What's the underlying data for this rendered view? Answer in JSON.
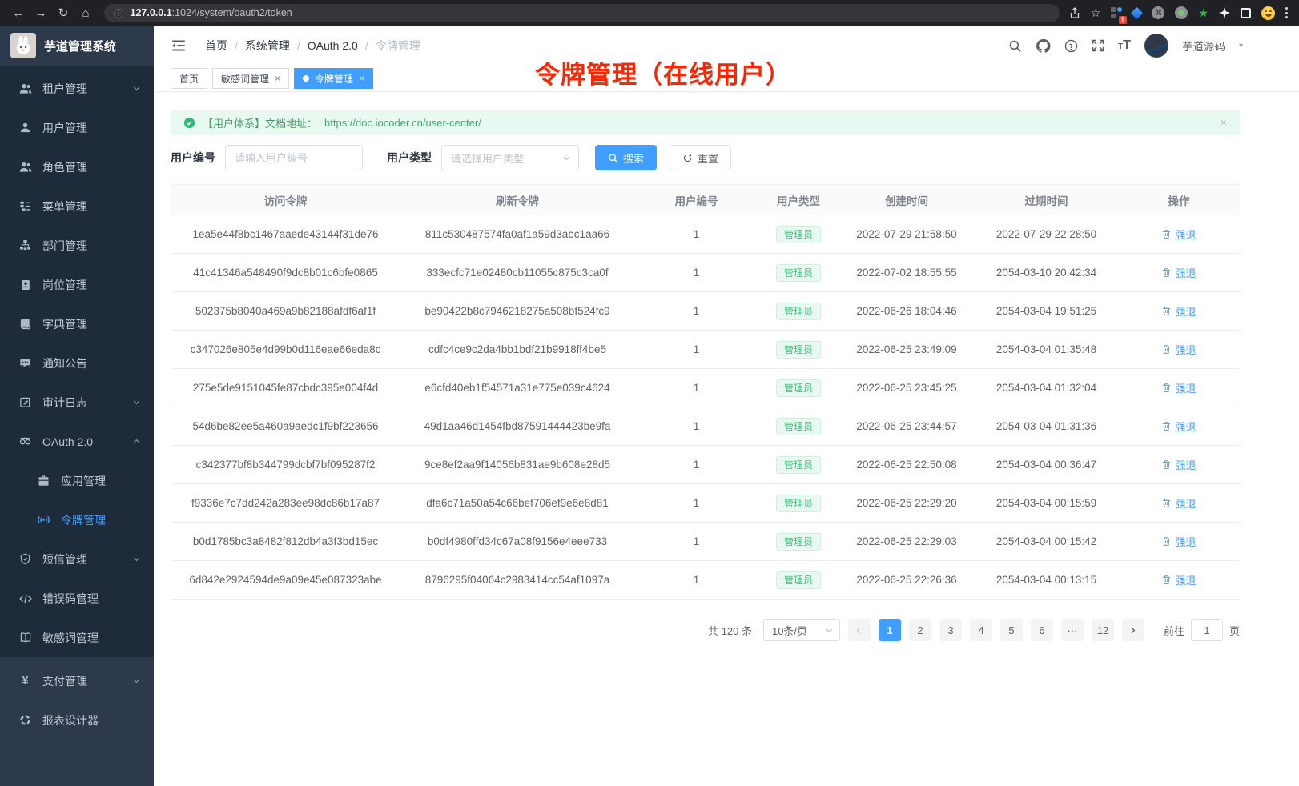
{
  "browser": {
    "url_host": "127.0.0.1",
    "url_path": ":1024/system/oauth2/token",
    "extension_badge": "9"
  },
  "header": {
    "logo_title": "芋道管理系统",
    "breadcrumb": [
      "首页",
      "系统管理",
      "OAuth 2.0",
      "令牌管理"
    ],
    "username": "芋道源码"
  },
  "annotation": "令牌管理（在线用户）",
  "sidebar": {
    "items": [
      {
        "name": "tenant",
        "label": "租户管理",
        "icon": "users-icon",
        "chevron": "down"
      },
      {
        "name": "user",
        "label": "用户管理",
        "icon": "user-icon"
      },
      {
        "name": "role",
        "label": "角色管理",
        "icon": "users-icon"
      },
      {
        "name": "menu",
        "label": "菜单管理",
        "icon": "tree-icon"
      },
      {
        "name": "dept",
        "label": "部门管理",
        "icon": "org-icon"
      },
      {
        "name": "post",
        "label": "岗位管理",
        "icon": "post-icon"
      },
      {
        "name": "dict",
        "label": "字典管理",
        "icon": "dict-icon"
      },
      {
        "name": "notice",
        "label": "通知公告",
        "icon": "notice-icon"
      },
      {
        "name": "audit-log",
        "label": "审计日志",
        "icon": "log-icon",
        "chevron": "down"
      },
      {
        "name": "oauth2",
        "label": "OAuth 2.0",
        "icon": "oauth-icon",
        "chevron": "up"
      },
      {
        "name": "oauth2-app",
        "label": "应用管理",
        "icon": "app-icon",
        "sub": true
      },
      {
        "name": "oauth2-token",
        "label": "令牌管理",
        "icon": "token-icon",
        "sub": true,
        "active": true
      },
      {
        "name": "sms",
        "label": "短信管理",
        "icon": "shield-icon",
        "chevron": "down"
      },
      {
        "name": "error-code",
        "label": "错误码管理",
        "icon": "code-icon"
      },
      {
        "name": "sensitive-word",
        "label": "敏感词管理",
        "icon": "book-icon"
      },
      {
        "name": "pay",
        "label": "支付管理",
        "icon": "yen-icon",
        "chevron": "down",
        "section": "bottom"
      },
      {
        "name": "report-designer",
        "label": "报表设计器",
        "icon": "report-icon",
        "section": "bottom"
      }
    ]
  },
  "tabs": [
    {
      "label": "首页",
      "closable": false,
      "active": false
    },
    {
      "label": "敏感词管理",
      "closable": true,
      "active": false
    },
    {
      "label": "令牌管理",
      "closable": true,
      "active": true
    }
  ],
  "alert": {
    "text": "【用户体系】文档地址：",
    "link": "https://doc.iocoder.cn/user-center/"
  },
  "filters": {
    "user_id_label": "用户编号",
    "user_id_placeholder": "请输入用户编号",
    "user_type_label": "用户类型",
    "user_type_placeholder": "请选择用户类型",
    "search_label": "搜索",
    "reset_label": "重置"
  },
  "table": {
    "columns": [
      "访问令牌",
      "刷新令牌",
      "用户编号",
      "用户类型",
      "创建时间",
      "过期时间",
      "操作"
    ],
    "badge_label": "管理员",
    "action_label": "强退",
    "rows": [
      {
        "access": "1ea5e44f8bc1467aaede43144f31de76",
        "refresh": "811c530487574fa0af1a59d3abc1aa66",
        "user_id": "1",
        "created": "2022-07-29 21:58:50",
        "expires": "2022-07-29 22:28:50"
      },
      {
        "access": "41c41346a548490f9dc8b01c6bfe0865",
        "refresh": "333ecfc71e02480cb11055c875c3ca0f",
        "user_id": "1",
        "created": "2022-07-02 18:55:55",
        "expires": "2054-03-10 20:42:34"
      },
      {
        "access": "502375b8040a469a9b82188afdf6af1f",
        "refresh": "be90422b8c7946218275a508bf524fc9",
        "user_id": "1",
        "created": "2022-06-26 18:04:46",
        "expires": "2054-03-04 19:51:25"
      },
      {
        "access": "c347026e805e4d99b0d116eae66eda8c",
        "refresh": "cdfc4ce9c2da4bb1bdf21b9918ff4be5",
        "user_id": "1",
        "created": "2022-06-25 23:49:09",
        "expires": "2054-03-04 01:35:48"
      },
      {
        "access": "275e5de9151045fe87cbdc395e004f4d",
        "refresh": "e6cfd40eb1f54571a31e775e039c4624",
        "user_id": "1",
        "created": "2022-06-25 23:45:25",
        "expires": "2054-03-04 01:32:04"
      },
      {
        "access": "54d6be82ee5a460a9aedc1f9bf223656",
        "refresh": "49d1aa46d1454fbd87591444423be9fa",
        "user_id": "1",
        "created": "2022-06-25 23:44:57",
        "expires": "2054-03-04 01:31:36"
      },
      {
        "access": "c342377bf8b344799dcbf7bf095287f2",
        "refresh": "9ce8ef2aa9f14056b831ae9b608e28d5",
        "user_id": "1",
        "created": "2022-06-25 22:50:08",
        "expires": "2054-03-04 00:36:47"
      },
      {
        "access": "f9336e7c7dd242a283ee98dc86b17a87",
        "refresh": "dfa6c71a50a54c66bef706ef9e6e8d81",
        "user_id": "1",
        "created": "2022-06-25 22:29:20",
        "expires": "2054-03-04 00:15:59"
      },
      {
        "access": "b0d1785bc3a8482f812db4a3f3bd15ec",
        "refresh": "b0df4980ffd34c67a08f9156e4eee733",
        "user_id": "1",
        "created": "2022-06-25 22:29:03",
        "expires": "2054-03-04 00:15:42"
      },
      {
        "access": "6d842e2924594de9a09e45e087323abe",
        "refresh": "8796295f04064c2983414cc54af1097a",
        "user_id": "1",
        "created": "2022-06-25 22:26:36",
        "expires": "2054-03-04 00:13:15"
      }
    ]
  },
  "pagination": {
    "total": "共 120 条",
    "page_size": "10条/页",
    "pages": [
      "1",
      "2",
      "3",
      "4",
      "5",
      "6",
      "···",
      "12"
    ],
    "active_page": "1",
    "goto_label": "前往",
    "goto_value": "1",
    "goto_suffix": "页"
  },
  "colors": {
    "accent": "#409eff",
    "annotation_red": "#ff2400",
    "success_green": "#3fc27f",
    "alert_bg": "#e7f9f0",
    "sidebar_dark": "#1d2b3b",
    "sidebar_light": "#2c3a4b"
  }
}
